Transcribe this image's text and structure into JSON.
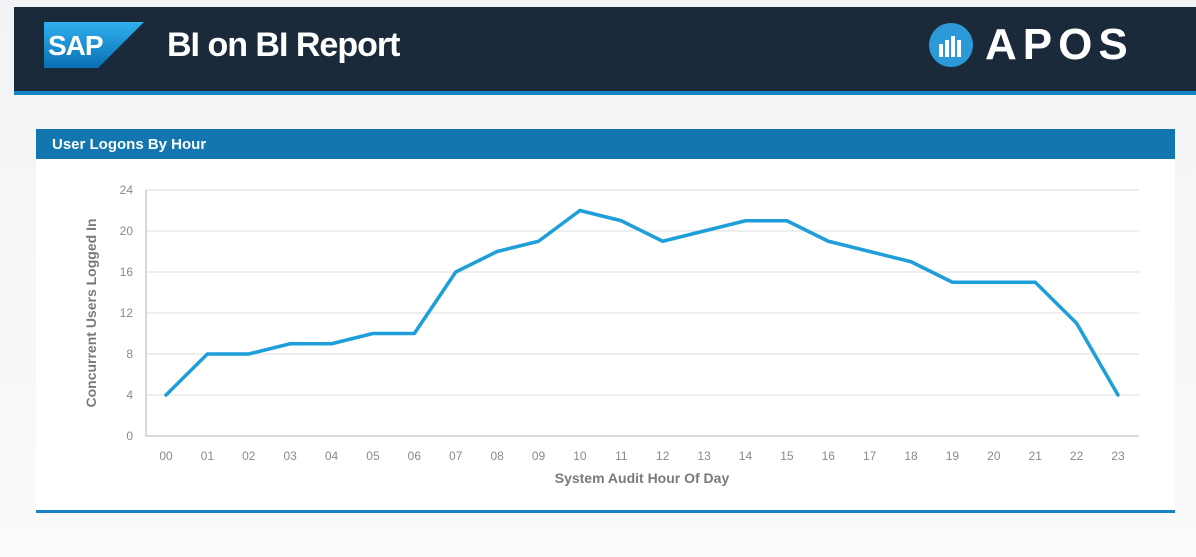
{
  "header": {
    "sap_logo_text": "SAP",
    "title": "BI on BI Report",
    "brand": "APOS"
  },
  "panel": {
    "title": "User Logons By Hour"
  },
  "chart_data": {
    "type": "line",
    "title": "User Logons By Hour",
    "xlabel": "System Audit Hour Of Day",
    "ylabel": "Concurrent Users Logged In",
    "categories": [
      "00",
      "01",
      "02",
      "03",
      "04",
      "05",
      "06",
      "07",
      "08",
      "09",
      "10",
      "11",
      "12",
      "13",
      "14",
      "15",
      "16",
      "17",
      "18",
      "19",
      "20",
      "21",
      "22",
      "23"
    ],
    "values": [
      4,
      8,
      8,
      9,
      9,
      10,
      10,
      16,
      18,
      19,
      22,
      21,
      19,
      20,
      21,
      21,
      19,
      18,
      17,
      15,
      15,
      15,
      11,
      4
    ],
    "yticks": [
      0,
      4,
      8,
      12,
      16,
      20,
      24
    ],
    "ylim": [
      0,
      24
    ],
    "grid": true,
    "line_color": "#1e9fd9"
  }
}
